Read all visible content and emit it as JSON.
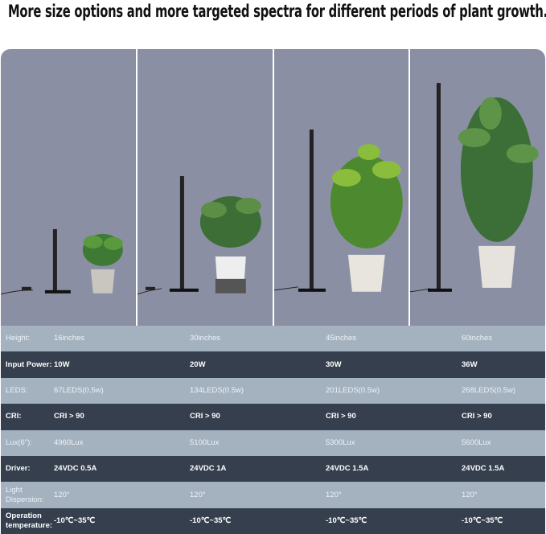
{
  "headline": "More size options and more targeted spectra for different periods of plant growth.",
  "colors": {
    "panel_bg": "#8a8fa3",
    "row_light": "#a4b2c0",
    "row_dark": "#353f4e"
  },
  "specs": [
    {
      "label": "Height:",
      "values": [
        "16inches",
        "30inches",
        "45inches",
        "60inches"
      ]
    },
    {
      "label": "Input Power:",
      "values": [
        "10W",
        "20W",
        "30W",
        "36W"
      ]
    },
    {
      "label": "LEDS:",
      "values": [
        "67LEDS(0.5w)",
        "134LEDS(0.5w)",
        "201LEDS(0.5w)",
        "268LEDS(0.5w)"
      ]
    },
    {
      "label": "CRI:",
      "values": [
        "CRI > 90",
        "CRI > 90",
        "CRI > 90",
        "CRI > 90"
      ]
    },
    {
      "label": "Lux(6\"):",
      "values": [
        "4960Lux",
        "5100Lux",
        "5300Lux",
        "5600Lux"
      ]
    },
    {
      "label": "Driver:",
      "values": [
        "24VDC 0.5A",
        "24VDC 1A",
        "24VDC 1.5A",
        "24VDC 1.5A"
      ]
    },
    {
      "label": "Light Dispersion:",
      "values": [
        "120°",
        "120°",
        "120°",
        "120°"
      ]
    },
    {
      "label": "Operation temperature:",
      "values": [
        "-10℃~35℃",
        "-10℃~35℃",
        "-10℃~35℃",
        "-10℃~35℃"
      ]
    }
  ]
}
